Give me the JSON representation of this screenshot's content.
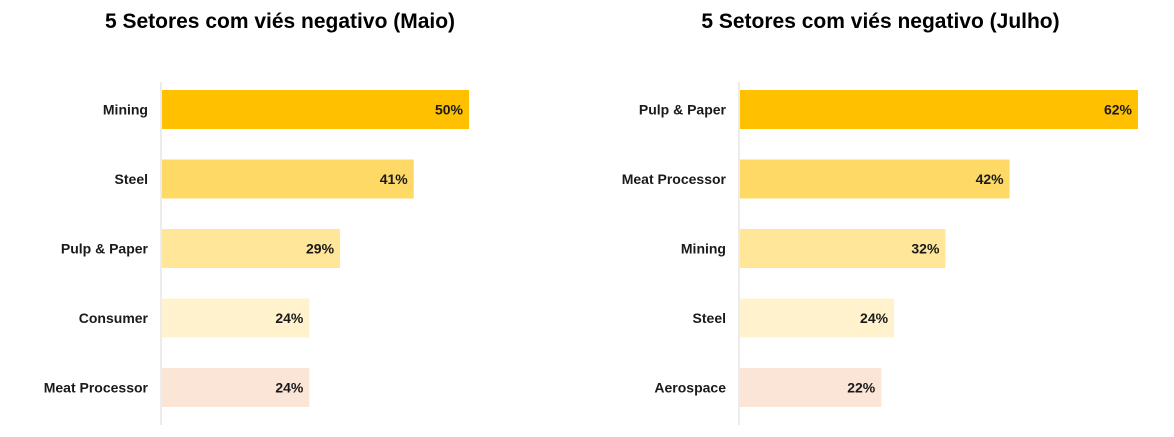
{
  "chart_data": [
    {
      "type": "bar",
      "orientation": "horizontal",
      "title": "5 Setores com viés negativo (Maio)",
      "categories": [
        "Mining",
        "Steel",
        "Pulp & Paper",
        "Consumer",
        "Meat Processor"
      ],
      "values": [
        50,
        41,
        29,
        24,
        24
      ],
      "value_labels": [
        "50%",
        "41%",
        "29%",
        "24%",
        "24%"
      ],
      "bar_colors": [
        "#FFC000",
        "#FFD966",
        "#FFE699",
        "#FFF2CC",
        "#FBE5D6"
      ],
      "xlim": [
        0,
        50
      ],
      "grid": false,
      "legend": "none"
    },
    {
      "type": "bar",
      "orientation": "horizontal",
      "title": "5 Setores com viés negativo (Julho)",
      "categories": [
        "Pulp & Paper",
        "Meat Processor",
        "Mining",
        "Steel",
        "Aerospace"
      ],
      "values": [
        62,
        42,
        32,
        24,
        22
      ],
      "value_labels": [
        "62%",
        "42%",
        "32%",
        "24%",
        "22%"
      ],
      "bar_colors": [
        "#FFC000",
        "#FFD966",
        "#FFE699",
        "#FFF2CC",
        "#FBE5D6"
      ],
      "xlim": [
        0,
        62
      ],
      "grid": false,
      "legend": "none"
    }
  ]
}
